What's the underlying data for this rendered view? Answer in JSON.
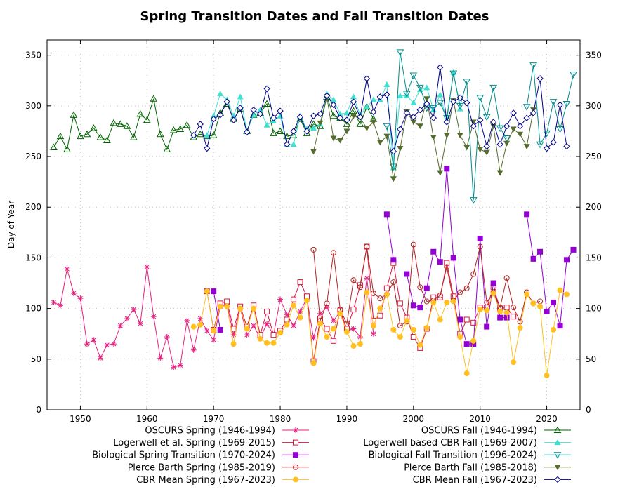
{
  "chart_data": {
    "type": "line",
    "title": "Spring Transition Dates and Fall Transition Dates",
    "xlabel": "",
    "ylabel": "Day of Year",
    "xlim": [
      1945,
      2025
    ],
    "ylim": [
      0,
      365
    ],
    "xticks": [
      1950,
      1960,
      1970,
      1980,
      1990,
      2000,
      2010,
      2020
    ],
    "yticks": [
      0,
      50,
      100,
      150,
      200,
      250,
      300,
      350
    ],
    "grid": true,
    "legend_placement": "bottom, two columns",
    "series": [
      {
        "name": "OSCURS Spring (1946-1994)",
        "color": "#e5207f",
        "marker": "star",
        "start": 1946,
        "values": [
          106,
          103,
          139,
          115,
          110,
          65,
          69,
          51,
          64,
          65,
          83,
          90,
          99,
          85,
          141,
          92,
          51,
          72,
          42,
          44,
          88,
          59,
          90,
          78,
          69,
          102,
          104,
          74,
          100,
          74,
          83,
          71,
          85,
          74,
          109,
          94,
          83,
          97,
          110,
          71,
          95,
          101,
          88,
          97,
          78,
          80,
          72,
          130,
          75
        ]
      },
      {
        "name": "Logerwell et al. Spring (1969-2015)",
        "color": "#dc143c",
        "marker": "square-open",
        "start": 1969,
        "values": [
          117,
          79,
          105,
          107,
          80,
          102,
          82,
          103,
          74,
          97,
          74,
          78,
          89,
          109,
          126,
          112,
          48,
          90,
          80,
          68,
          98,
          80,
          99,
          123,
          161,
          88,
          93,
          120,
          145,
          105,
          91,
          72,
          61,
          80,
          111,
          111,
          145,
          112,
          75,
          89,
          86,
          101,
          101,
          121,
          100,
          101,
          92
        ]
      },
      {
        "name": "Biological Spring Transition (1970-2024)",
        "color": "#9400d3",
        "marker": "square-filled",
        "start": 1970,
        "values": [
          117,
          79,
          null,
          null,
          null,
          null,
          null,
          null,
          null,
          null,
          null,
          null,
          null,
          null,
          null,
          null,
          null,
          null,
          null,
          null,
          null,
          null,
          null,
          null,
          null,
          null,
          193,
          148,
          null,
          134,
          103,
          101,
          120,
          156,
          146,
          238,
          150,
          89,
          65,
          65,
          169,
          82,
          125,
          91,
          91,
          null,
          null,
          193,
          149,
          156,
          97,
          106,
          83,
          148,
          158
        ]
      },
      {
        "name": "Pierce Barth Spring (1985-2019)",
        "color": "#b22222",
        "marker": "circle-open",
        "start": 1985,
        "values": [
          158,
          88,
          105,
          155,
          99,
          85,
          128,
          121,
          161,
          115,
          110,
          114,
          126,
          83,
          87,
          163,
          121,
          107,
          108,
          113,
          141,
          108,
          116,
          120,
          134,
          161,
          106,
          116,
          101,
          130,
          101,
          87,
          116,
          105,
          107
        ]
      },
      {
        "name": "CBR Mean Spring (1967-2023)",
        "color": "#ffc020",
        "marker": "circle-filled",
        "start": 1967,
        "values": [
          82,
          84,
          117,
          78,
          102,
          102,
          65,
          100,
          80,
          100,
          70,
          66,
          66,
          76,
          84,
          103,
          91,
          108,
          46,
          85,
          72,
          80,
          95,
          77,
          63,
          65,
          116,
          83,
          100,
          114,
          79,
          72,
          88,
          79,
          64,
          81,
          106,
          89,
          106,
          107,
          72,
          36,
          68,
          99,
          98,
          115,
          97,
          96,
          47,
          81,
          114,
          105,
          102,
          34,
          79,
          118,
          114
        ]
      },
      {
        "name": "OSCURS Fall (1946-1994)",
        "color": "#006400",
        "marker": "triangle-open",
        "start": 1946,
        "values": [
          259,
          270,
          257,
          291,
          270,
          272,
          278,
          269,
          266,
          283,
          282,
          280,
          269,
          292,
          286,
          307,
          272,
          257,
          276,
          277,
          281,
          269,
          272,
          270,
          271,
          293,
          302,
          287,
          297,
          275,
          291,
          293,
          302,
          273,
          275,
          270,
          271,
          287,
          273,
          282,
          280,
          309,
          290,
          288,
          282,
          295,
          282,
          299,
          287
        ]
      },
      {
        "name": "Logerwell based CBR Fall (1969-2007)",
        "color": "#40e0d0",
        "marker": "triangle-filled",
        "start": 1969,
        "values": [
          271,
          290,
          312,
          306,
          290,
          309,
          275,
          291,
          296,
          281,
          285,
          290,
          262,
          262,
          290,
          277,
          278,
          282,
          312,
          306,
          292,
          293,
          309,
          291,
          299,
          306,
          306,
          321,
          239,
          310,
          310,
          303,
          316,
          318,
          296,
          311,
          285,
          333,
          297
        ]
      },
      {
        "name": "Biological Fall Transition (1996-2024)",
        "color": "#008b8b",
        "marker": "triangle-down-open",
        "start": 1996,
        "values": [
          280,
          240,
          353,
          312,
          330,
          318,
          298,
          298,
          303,
          288,
          332,
          300,
          324,
          207,
          308,
          289,
          318,
          278,
          268,
          null,
          null,
          299,
          340,
          262,
          273,
          304,
          277,
          302,
          331
        ]
      },
      {
        "name": "Pierce Barth Fall (1985-2018)",
        "color": "#556b2f",
        "marker": "triangle-down-filled",
        "start": 1985,
        "values": [
          255,
          283,
          309,
          268,
          266,
          275,
          290,
          288,
          278,
          284,
          264,
          270,
          228,
          258,
          294,
          284,
          280,
          307,
          269,
          234,
          271,
          305,
          271,
          259,
          284,
          257,
          254,
          280,
          234,
          263,
          277,
          272,
          260,
          296
        ]
      },
      {
        "name": "CBR Mean Fall (1967-2023)",
        "color": "#00008b",
        "marker": "diamond-open",
        "start": 1967,
        "values": [
          271,
          282,
          258,
          287,
          291,
          304,
          286,
          298,
          274,
          296,
          292,
          317,
          288,
          295,
          262,
          275,
          289,
          275,
          290,
          292,
          310,
          301,
          288,
          286,
          304,
          289,
          327,
          294,
          309,
          311,
          255,
          277,
          293,
          289,
          296,
          302,
          288,
          338,
          284,
          304,
          308,
          303,
          280,
          286,
          260,
          284,
          262,
          280,
          293,
          280,
          288,
          293,
          327,
          258,
          264,
          301,
          260
        ]
      }
    ]
  }
}
